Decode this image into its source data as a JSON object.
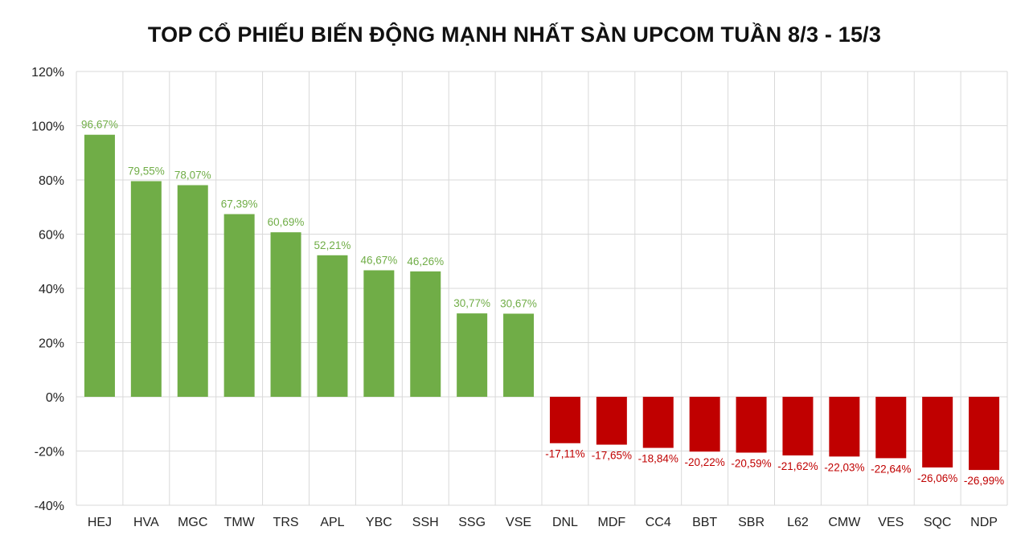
{
  "chart_data": {
    "type": "bar",
    "title": "TOP CỔ PHIẾU BIẾN ĐỘNG MẠNH NHẤT SÀN UPCOM TUẦN 8/3 - 15/3",
    "xlabel": "",
    "ylabel": "",
    "ylim": [
      -40,
      120
    ],
    "yticks": [
      120,
      100,
      80,
      60,
      40,
      20,
      0,
      -20,
      -40
    ],
    "ytick_labels": [
      "120%",
      "100%",
      "80%",
      "60%",
      "40%",
      "20%",
      "0%",
      "-20%",
      "-40%"
    ],
    "grid": true,
    "categories": [
      "HEJ",
      "HVA",
      "MGC",
      "TMW",
      "TRS",
      "APL",
      "YBC",
      "SSH",
      "SSG",
      "VSE",
      "DNL",
      "MDF",
      "CC4",
      "BBT",
      "SBR",
      "L62",
      "CMW",
      "VES",
      "SQC",
      "NDP"
    ],
    "values": [
      96.67,
      79.55,
      78.07,
      67.39,
      60.69,
      52.21,
      46.67,
      46.26,
      30.77,
      30.67,
      -17.11,
      -17.65,
      -18.84,
      -20.22,
      -20.59,
      -21.62,
      -22.03,
      -22.64,
      -26.06,
      -26.99
    ],
    "data_labels": [
      "96,67%",
      "79,55%",
      "78,07%",
      "67,39%",
      "60,69%",
      "52,21%",
      "46,67%",
      "46,26%",
      "30,77%",
      "30,67%",
      "-17,11%",
      "-17,65%",
      "-18,84%",
      "-20,22%",
      "-20,59%",
      "-21,62%",
      "-22,03%",
      "-22,64%",
      "-26,06%",
      "-26,99%"
    ],
    "colors": {
      "positive": "#70ad47",
      "negative": "#c00000",
      "grid": "#d9d9d9"
    }
  }
}
